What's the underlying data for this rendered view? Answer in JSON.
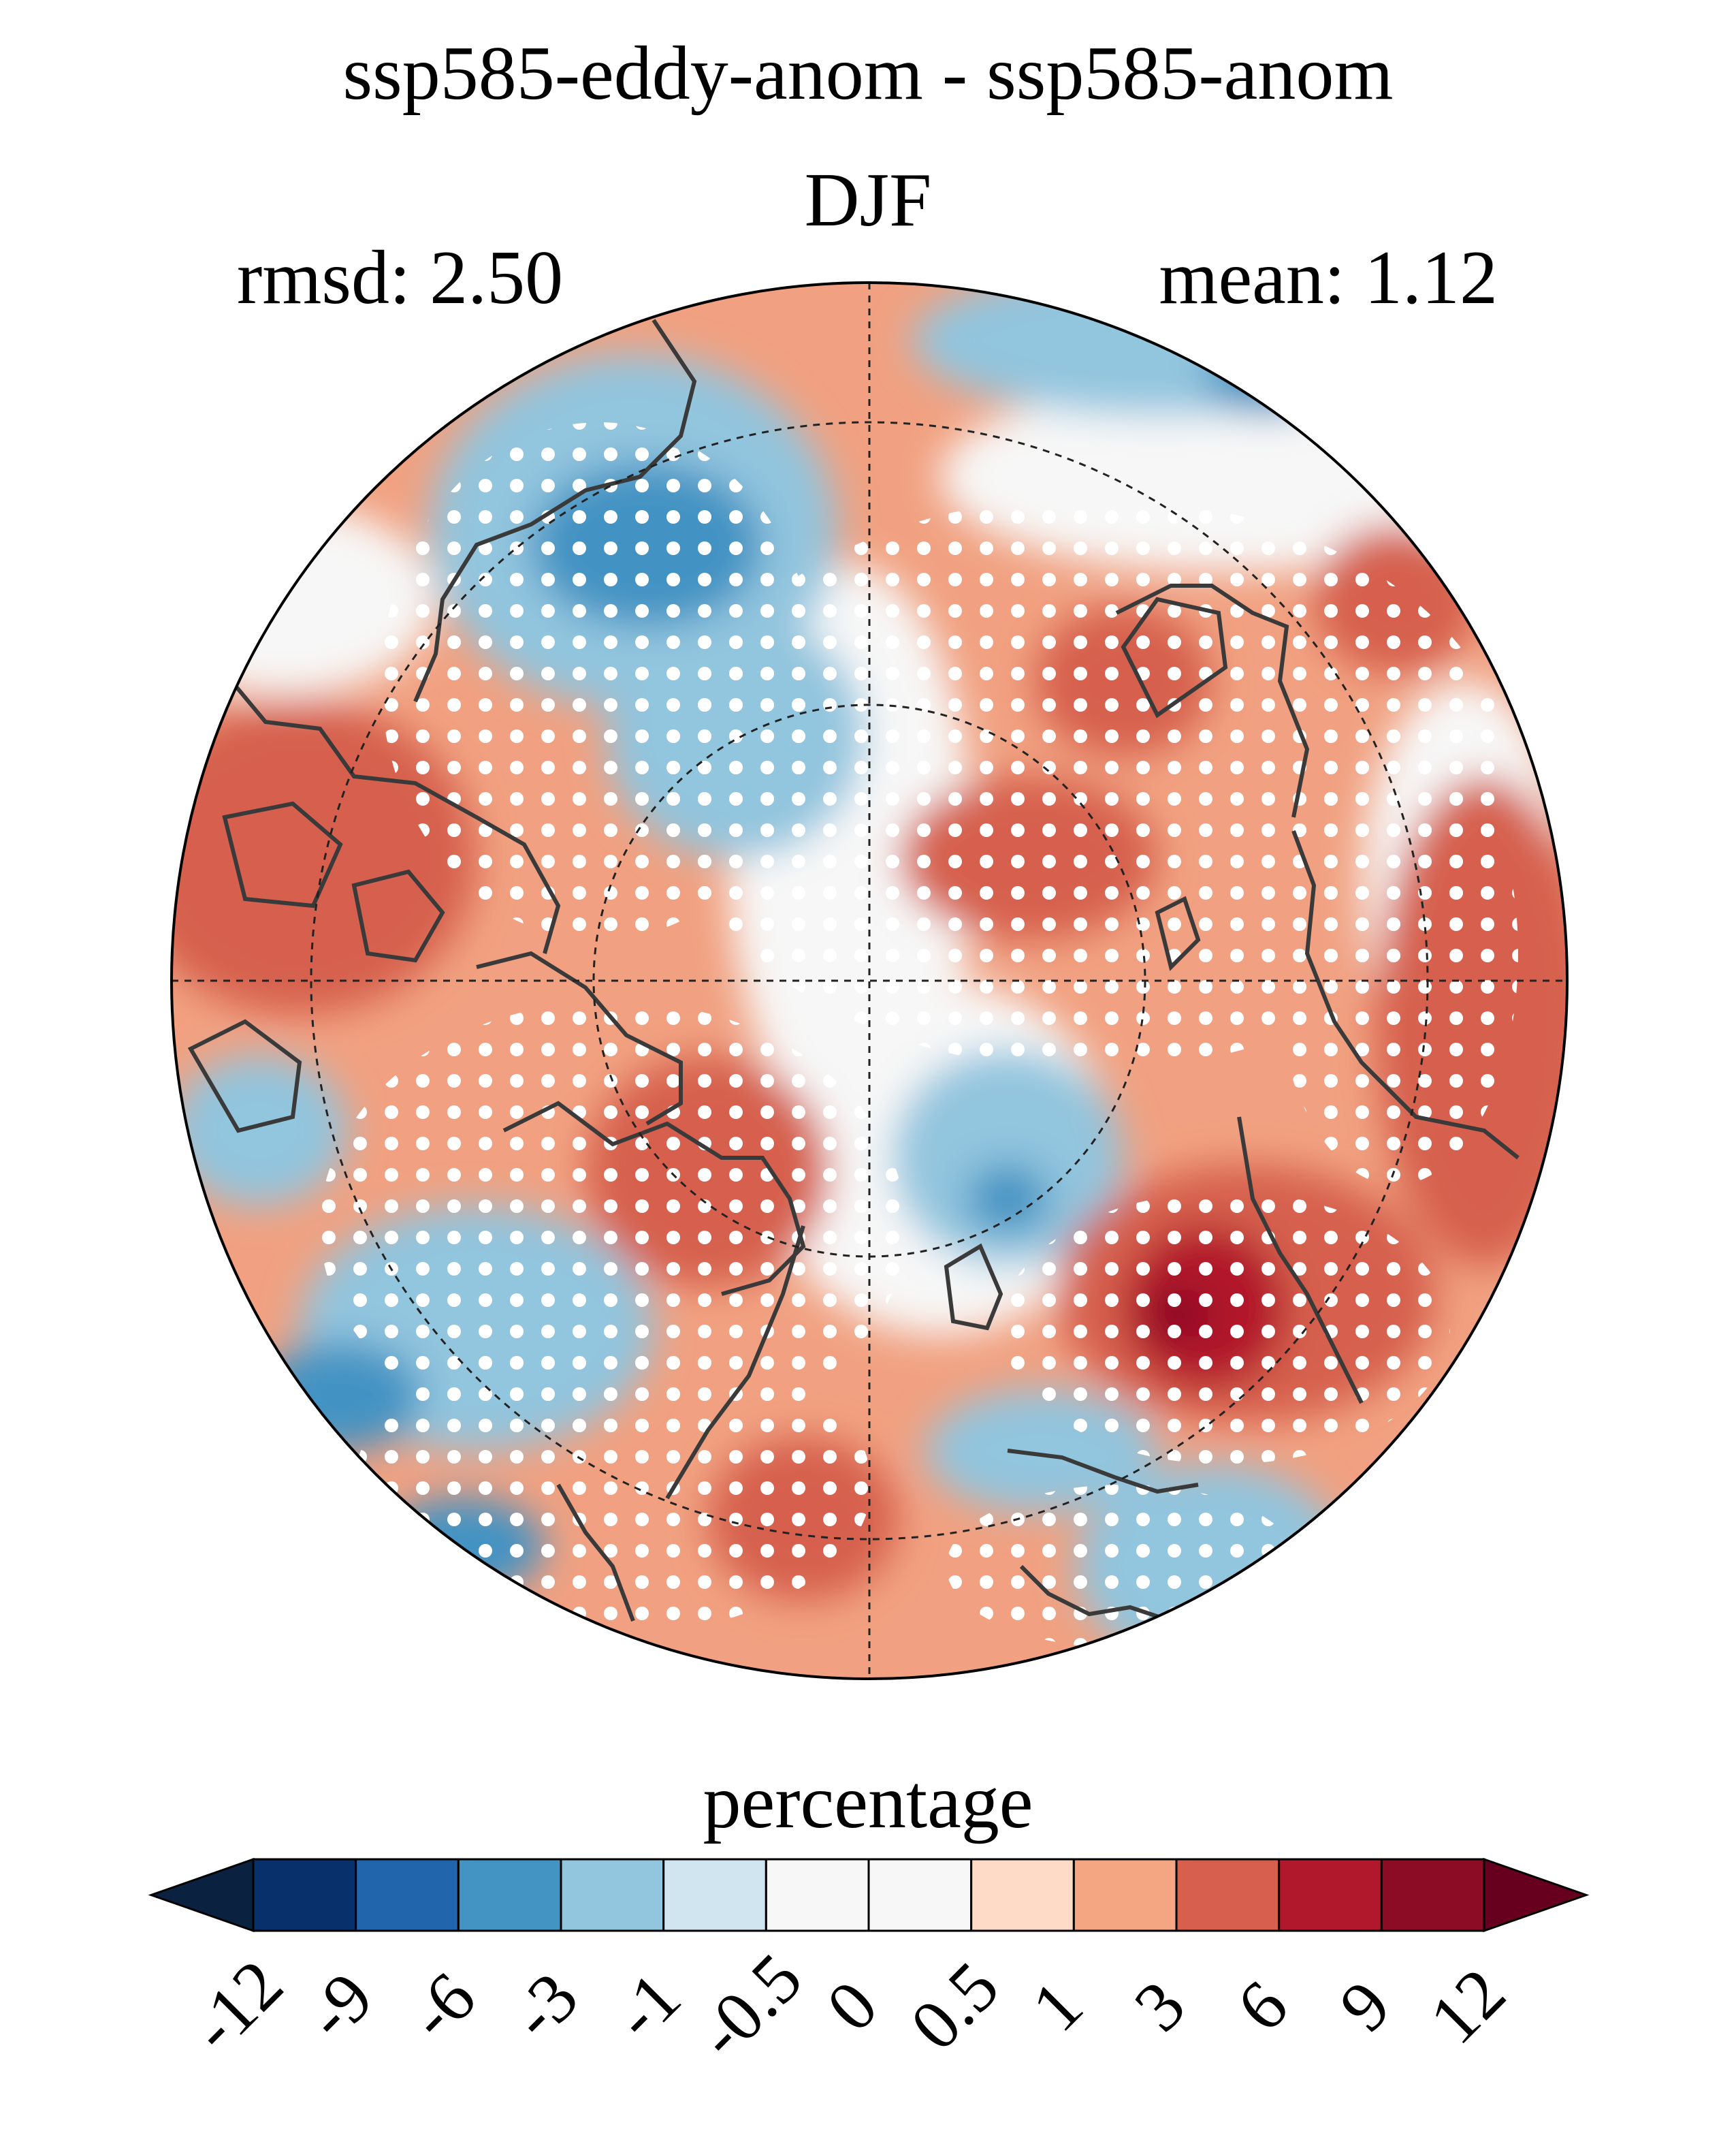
{
  "title": "ssp585-eddy-anom - ssp585-anom",
  "subtitle": "DJF",
  "stats": {
    "rmsd": "rmsd: 2.50",
    "mean": "mean: 1.12"
  },
  "map": {
    "projection": "north-polar-stereographic",
    "variable_field": "eddy anomaly difference",
    "stippling": "white dots mark significant grid cells",
    "coastline_color": "#3a3a3a",
    "graticule_style": "dashed"
  },
  "colorbar": {
    "label": "percentage",
    "ticks": [
      "-12",
      "-9",
      "-6",
      "-3",
      "-1",
      "-0.5",
      "0",
      "0.5",
      "1",
      "3",
      "6",
      "9",
      "12"
    ],
    "extend_low_color": "#0a2240",
    "extend_high_color": "#67001f",
    "colors": [
      "#08306b",
      "#2166ac",
      "#4393c3",
      "#92c5de",
      "#d1e5f0",
      "#f7f7f7",
      "#f7f7f7",
      "#fddbc7",
      "#f4a582",
      "#d6604d",
      "#b2182b",
      "#8d0c25"
    ]
  }
}
